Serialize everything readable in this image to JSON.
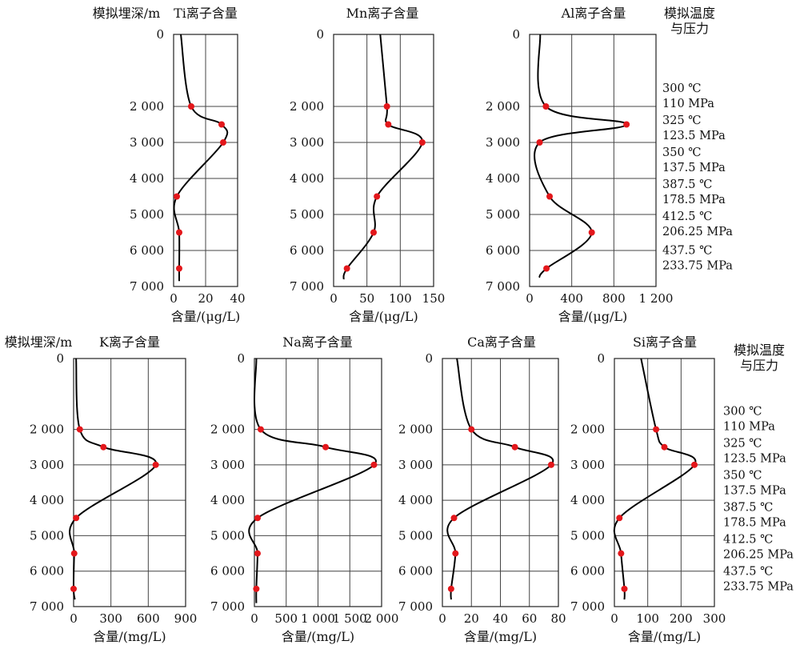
{
  "figure": {
    "top_row": {
      "depth_axis_label": "模拟埋深/m",
      "side_label": [
        "模拟温度",
        "与压力"
      ],
      "conditions": [
        {
          "depth": 2000,
          "lines": [
            "300 ℃",
            "110 MPa"
          ]
        },
        {
          "depth": 2500,
          "lines": [
            "325 ℃",
            "123.5 MPa"
          ]
        },
        {
          "depth": 3000,
          "lines": [
            "350 ℃",
            "137.5 MPa"
          ]
        },
        {
          "depth": 4500,
          "lines": [
            "387.5 ℃",
            "178.5 MPa"
          ]
        },
        {
          "depth": 5500,
          "lines": [
            "412.5 ℃",
            "206.25 MPa"
          ]
        },
        {
          "depth": 6500,
          "lines": [
            "437.5 ℃",
            "233.75 MPa"
          ]
        }
      ]
    },
    "bottom_row": {
      "depth_axis_label": "模拟埋深/m",
      "side_label": [
        "模拟温度",
        "与压力"
      ],
      "conditions": [
        {
          "depth": 2000,
          "lines": [
            "300 ℃",
            "110 MPa"
          ]
        },
        {
          "depth": 2500,
          "lines": [
            "325 ℃",
            "123.5 MPa"
          ]
        },
        {
          "depth": 3000,
          "lines": [
            "350 ℃",
            "137.5 MPa"
          ]
        },
        {
          "depth": 4500,
          "lines": [
            "387.5 ℃",
            "178.5 MPa"
          ]
        },
        {
          "depth": 5500,
          "lines": [
            "412.5 ℃",
            "206.25 MPa"
          ]
        },
        {
          "depth": 6500,
          "lines": [
            "437.5 ℃",
            "233.75 MPa"
          ]
        }
      ]
    },
    "colors": {
      "point": "#e3171b",
      "curve": "#000000",
      "grid": "#444444"
    }
  },
  "chart_data": [
    {
      "type": "line",
      "title": "Ti离子含量",
      "xlabel": "含量/(μg/L)",
      "x_ticks": [
        "0",
        "20",
        "40"
      ],
      "xlim": [
        0,
        40
      ],
      "y_ticks": [
        "0",
        "2 000",
        "3 000",
        "4 000",
        "5 000",
        "6 000",
        "7 000"
      ],
      "ylim": [
        0,
        7000
      ],
      "depth": [
        2000,
        2500,
        3000,
        4500,
        5500,
        6500
      ],
      "values": [
        11,
        30,
        31,
        2,
        3.5,
        3.5
      ],
      "curve_start": [
        4.5,
        0
      ],
      "curve_end": [
        3.5,
        6850
      ]
    },
    {
      "type": "line",
      "title": "Mn离子含量",
      "xlabel": "含量/(μg/L)",
      "x_ticks": [
        "0",
        "50",
        "100",
        "150"
      ],
      "xlim": [
        0,
        150
      ],
      "y_ticks": [
        "0",
        "2 000",
        "3 000",
        "4 000",
        "5 000",
        "6 000",
        "7 000"
      ],
      "ylim": [
        0,
        7000
      ],
      "depth": [
        2000,
        2500,
        3000,
        4500,
        5500,
        6500
      ],
      "values": [
        80,
        82,
        133,
        65,
        60,
        20
      ],
      "curve_start": [
        70,
        0
      ],
      "curve_end": [
        15,
        6800
      ]
    },
    {
      "type": "line",
      "title": "Al离子含量",
      "xlabel": "含量/(μg/L)",
      "x_ticks": [
        "0",
        "400",
        "800",
        "1 200"
      ],
      "xlim": [
        0,
        1200
      ],
      "y_ticks": [
        "0",
        "2 000",
        "3 000",
        "4 000",
        "5 000",
        "6 000",
        "7 000"
      ],
      "ylim": [
        0,
        7000
      ],
      "depth": [
        2000,
        2500,
        3000,
        4500,
        5500,
        6500
      ],
      "values": [
        155,
        920,
        95,
        190,
        590,
        160
      ],
      "curve_start": [
        100,
        0
      ],
      "curve_end": [
        90,
        6750
      ]
    },
    {
      "type": "line",
      "title": "K离子含量",
      "xlabel": "含量/(mg/L)",
      "x_ticks": [
        "0",
        "300",
        "600",
        "900"
      ],
      "xlim": [
        0,
        900
      ],
      "y_ticks": [
        "0",
        "2 000",
        "3 000",
        "4 000",
        "5 000",
        "6 000",
        "7 000"
      ],
      "ylim": [
        0,
        7000
      ],
      "depth": [
        2000,
        2500,
        3000,
        4500,
        5500,
        6500
      ],
      "values": [
        50,
        240,
        660,
        20,
        5,
        0
      ],
      "curve_start": [
        20,
        0
      ],
      "curve_end": [
        10,
        6800
      ]
    },
    {
      "type": "line",
      "title": "Na离子含量",
      "xlabel": "含量/(mg/L)",
      "x_ticks": [
        "0",
        "500",
        "1 000",
        "1 500",
        "2 000"
      ],
      "xlim": [
        0,
        2000
      ],
      "y_ticks": [
        "0",
        "2 000",
        "3 000",
        "4 000",
        "5 000",
        "6 000",
        "7 000"
      ],
      "ylim": [
        0,
        7000
      ],
      "depth": [
        2000,
        2500,
        3000,
        4500,
        5500,
        6500
      ],
      "values": [
        100,
        1120,
        1880,
        50,
        50,
        30
      ],
      "curve_start": [
        30,
        0
      ],
      "curve_end": [
        30,
        6900
      ]
    },
    {
      "type": "line",
      "title": "Ca离子含量",
      "xlabel": "含量/(mg/L)",
      "x_ticks": [
        "0",
        "20",
        "40",
        "60",
        "80"
      ],
      "xlim": [
        0,
        80
      ],
      "y_ticks": [
        "0",
        "2 000",
        "3 000",
        "4 000",
        "5 000",
        "6 000",
        "7 000"
      ],
      "ylim": [
        0,
        7000
      ],
      "depth": [
        2000,
        2500,
        3000,
        4500,
        5500,
        6500
      ],
      "values": [
        20,
        50,
        75,
        8,
        9,
        6
      ],
      "curve_start": [
        10,
        0
      ],
      "curve_end": [
        6,
        6800
      ]
    },
    {
      "type": "line",
      "title": "Si离子含量",
      "xlabel": "含量/(mg/L)",
      "x_ticks": [
        "0",
        "100",
        "200",
        "300"
      ],
      "xlim": [
        0,
        300
      ],
      "y_ticks": [
        "0",
        "2 000",
        "3 000",
        "4 000",
        "5 000",
        "6 000",
        "7 000"
      ],
      "ylim": [
        0,
        7000
      ],
      "depth": [
        2000,
        2500,
        3000,
        4500,
        5500,
        6500
      ],
      "values": [
        125,
        150,
        240,
        15,
        20,
        30
      ],
      "curve_start": [
        80,
        0
      ],
      "curve_end": [
        30,
        6800
      ]
    }
  ]
}
